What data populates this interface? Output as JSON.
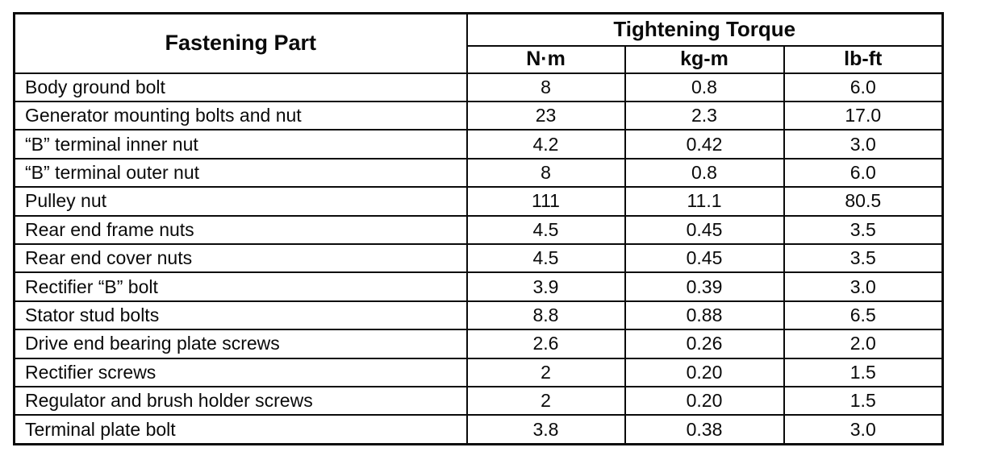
{
  "table": {
    "col1_header": "Fastening Part",
    "torque_header": "Tightening Torque",
    "units": [
      "N·m",
      "kg-m",
      "lb-ft"
    ],
    "rows": [
      {
        "part": "Body ground bolt",
        "nm": "8",
        "kgm": "0.8",
        "lbft": "6.0"
      },
      {
        "part": "Generator mounting bolts and nut",
        "nm": "23",
        "kgm": "2.3",
        "lbft": "17.0"
      },
      {
        "part": "“B” terminal inner nut",
        "nm": "4.2",
        "kgm": "0.42",
        "lbft": "3.0"
      },
      {
        "part": "“B” terminal outer nut",
        "nm": "8",
        "kgm": "0.8",
        "lbft": "6.0"
      },
      {
        "part": "Pulley nut",
        "nm": "111",
        "kgm": "11.1",
        "lbft": "80.5"
      },
      {
        "part": "Rear end frame nuts",
        "nm": "4.5",
        "kgm": "0.45",
        "lbft": "3.5"
      },
      {
        "part": "Rear end cover nuts",
        "nm": "4.5",
        "kgm": "0.45",
        "lbft": "3.5"
      },
      {
        "part": "Rectifier “B” bolt",
        "nm": "3.9",
        "kgm": "0.39",
        "lbft": "3.0"
      },
      {
        "part": "Stator stud bolts",
        "nm": "8.8",
        "kgm": "0.88",
        "lbft": "6.5"
      },
      {
        "part": "Drive end bearing plate screws",
        "nm": "2.6",
        "kgm": "0.26",
        "lbft": "2.0"
      },
      {
        "part": "Rectifier screws",
        "nm": "2",
        "kgm": "0.20",
        "lbft": "1.5"
      },
      {
        "part": "Regulator and brush holder screws",
        "nm": "2",
        "kgm": "0.20",
        "lbft": "1.5"
      },
      {
        "part": "Terminal plate bolt",
        "nm": "3.8",
        "kgm": "0.38",
        "lbft": "3.0"
      }
    ]
  }
}
